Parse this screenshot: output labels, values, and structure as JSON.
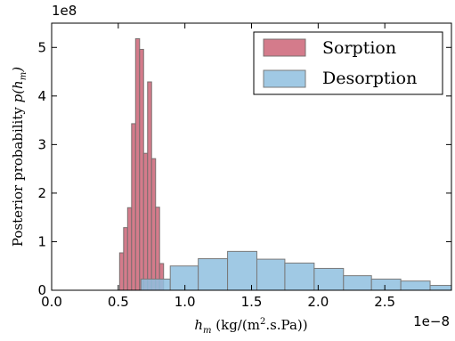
{
  "chart_data": {
    "type": "histogram",
    "title": "",
    "xlabel": {
      "base": "h",
      "sub": "m",
      "rest": " (kg/(m",
      "sup": "2",
      "tail": ".s.Pa))"
    },
    "ylabel": {
      "text": "Posterior probability ",
      "func_open": "p(h",
      "sub": "m",
      "func_close": ")"
    },
    "x_offset_label": "1e−8",
    "y_offset_label": "1e8",
    "xlim": [
      0.0,
      3.0
    ],
    "ylim": [
      0,
      5.5
    ],
    "xticks": [
      0.0,
      0.5,
      1.0,
      1.5,
      2.0,
      2.5
    ],
    "xtick_labels": [
      "0.0",
      "0.5",
      "1.0",
      "1.5",
      "2.0",
      "2.5"
    ],
    "yticks": [
      0,
      1,
      2,
      3,
      4,
      5
    ],
    "ytick_labels": [
      "0",
      "1",
      "2",
      "3",
      "4",
      "5"
    ],
    "grid": false,
    "legend_position": "top-right",
    "series": [
      {
        "name": "Sorption",
        "color": "#d47b8b",
        "edge_color": "#7a6f6f",
        "bin_edges": [
          0.51,
          0.54,
          0.57,
          0.6,
          0.63,
          0.66,
          0.69,
          0.72,
          0.75,
          0.78,
          0.81,
          0.84
        ],
        "values": [
          0.77,
          1.29,
          1.7,
          3.43,
          5.18,
          4.96,
          2.82,
          4.29,
          2.71,
          1.71,
          0.55
        ]
      },
      {
        "name": "Desorption",
        "color": "#8fbfdf",
        "edge_color": "#7a7a7a",
        "bin_edges": [
          0.67,
          0.89,
          1.1,
          1.32,
          1.54,
          1.75,
          1.97,
          2.19,
          2.4,
          2.62,
          2.84,
          3.0
        ],
        "values": [
          0.23,
          0.5,
          0.65,
          0.8,
          0.64,
          0.56,
          0.45,
          0.3,
          0.23,
          0.19,
          0.1
        ]
      }
    ]
  }
}
